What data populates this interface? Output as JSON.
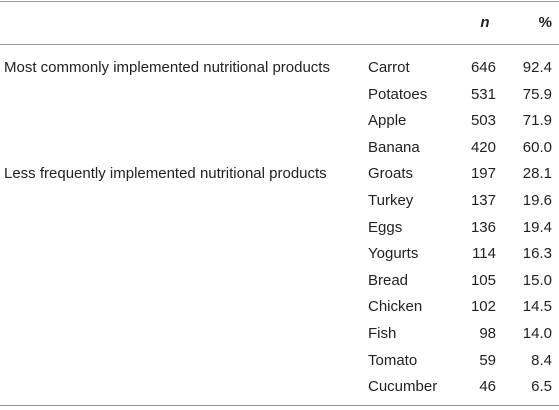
{
  "table": {
    "columns": [
      "",
      "",
      "n",
      "%"
    ],
    "groups": [
      {
        "label": "Most commonly implemented nutritional products",
        "rows": [
          {
            "product": "Carrot",
            "n": "646",
            "pct": "92.4"
          },
          {
            "product": "Potatoes",
            "n": "531",
            "pct": "75.9"
          },
          {
            "product": "Apple",
            "n": "503",
            "pct": "71.9"
          },
          {
            "product": "Banana",
            "n": "420",
            "pct": "60.0"
          }
        ]
      },
      {
        "label": "Less frequently implemented nutritional products",
        "rows": [
          {
            "product": "Groats",
            "n": "197",
            "pct": "28.1"
          },
          {
            "product": "Turkey",
            "n": "137",
            "pct": "19.6"
          },
          {
            "product": "Eggs",
            "n": "136",
            "pct": "19.4"
          },
          {
            "product": "Yogurts",
            "n": "114",
            "pct": "16.3"
          },
          {
            "product": "Bread",
            "n": "105",
            "pct": "15.0"
          },
          {
            "product": "Chicken",
            "n": "102",
            "pct": "14.5"
          },
          {
            "product": "Fish",
            "n": "98",
            "pct": "14.0"
          },
          {
            "product": "Tomato",
            "n": "59",
            "pct": "8.4"
          },
          {
            "product": "Cucumber",
            "n": "46",
            "pct": "6.5"
          }
        ]
      }
    ]
  }
}
